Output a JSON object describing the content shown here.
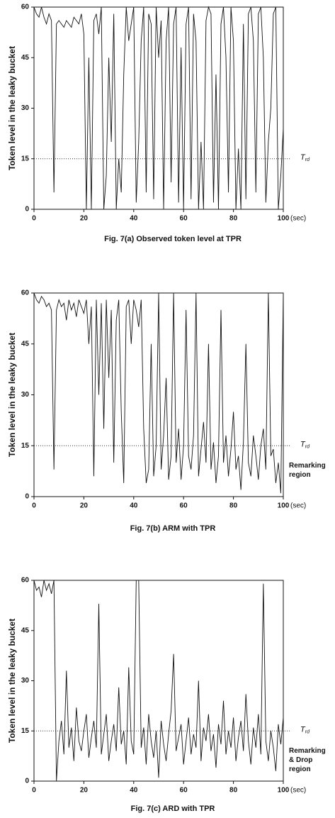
{
  "chart_data": [
    {
      "type": "line",
      "title": "Fig. 7(a) Observed token level at TPR",
      "ylabel": "Token level in the leaky bucket",
      "xlabel": "(sec)",
      "xlim": [
        0,
        100
      ],
      "ylim": [
        0,
        60
      ],
      "xticks": [
        0,
        20,
        40,
        60,
        80,
        100
      ],
      "yticks": [
        0,
        15,
        30,
        45,
        60
      ],
      "threshold": 15,
      "threshold_label": {
        "main": "T",
        "sub": "rd"
      },
      "color": "#111111",
      "x": [
        0,
        1,
        2,
        3,
        4,
        5,
        6,
        7,
        8,
        9,
        10,
        11,
        12,
        13,
        14,
        15,
        16,
        17,
        18,
        19,
        20,
        21,
        22,
        23,
        24,
        25,
        26,
        27,
        28,
        29,
        30,
        31,
        32,
        33,
        34,
        35,
        36,
        37,
        38,
        39,
        40,
        41,
        42,
        43,
        44,
        45,
        46,
        47,
        48,
        49,
        50,
        51,
        52,
        53,
        54,
        55,
        56,
        57,
        58,
        59,
        60,
        61,
        62,
        63,
        64,
        65,
        66,
        67,
        68,
        69,
        70,
        71,
        72,
        73,
        74,
        75,
        76,
        77,
        78,
        79,
        80,
        81,
        82,
        83,
        84,
        85,
        86,
        87,
        88,
        89,
        90,
        91,
        92,
        93,
        94,
        95,
        96,
        97,
        98,
        99,
        100
      ],
      "values": [
        60,
        58,
        57,
        60,
        57,
        55,
        58,
        56,
        5,
        55,
        56,
        55,
        54,
        56,
        55,
        54,
        57,
        56,
        55,
        58,
        52,
        0,
        45,
        0,
        56,
        58,
        52,
        60,
        0,
        10,
        45,
        20,
        58,
        0,
        15,
        5,
        40,
        60,
        50,
        55,
        60,
        2,
        20,
        50,
        60,
        5,
        58,
        55,
        3,
        60,
        45,
        56,
        0,
        50,
        60,
        8,
        55,
        60,
        2,
        48,
        0,
        55,
        60,
        3,
        58,
        50,
        0,
        20,
        0,
        56,
        60,
        58,
        2,
        40,
        0,
        55,
        60,
        45,
        5,
        60,
        50,
        0,
        18,
        0,
        55,
        3,
        58,
        60,
        50,
        5,
        58,
        60,
        45,
        2,
        20,
        30,
        58,
        60,
        0,
        10,
        24
      ]
    },
    {
      "type": "line",
      "title": "Fig. 7(b) ARM with TPR",
      "ylabel": "Token level in the leaky bucket",
      "xlabel": "(sec)",
      "xlim": [
        0,
        100
      ],
      "ylim": [
        0,
        60
      ],
      "xticks": [
        0,
        20,
        40,
        60,
        80,
        100
      ],
      "yticks": [
        0,
        15,
        30,
        45,
        60
      ],
      "threshold": 15,
      "threshold_label": {
        "main": "T",
        "sub": "rd"
      },
      "annotation": [
        "Remarking",
        "region"
      ],
      "color": "#111111",
      "x": [
        0,
        1,
        2,
        3,
        4,
        5,
        6,
        7,
        8,
        9,
        10,
        11,
        12,
        13,
        14,
        15,
        16,
        17,
        18,
        19,
        20,
        21,
        22,
        23,
        24,
        25,
        26,
        27,
        28,
        29,
        30,
        31,
        32,
        33,
        34,
        35,
        36,
        37,
        38,
        39,
        40,
        41,
        42,
        43,
        44,
        45,
        46,
        47,
        48,
        49,
        50,
        51,
        52,
        53,
        54,
        55,
        56,
        57,
        58,
        59,
        60,
        61,
        62,
        63,
        64,
        65,
        66,
        67,
        68,
        69,
        70,
        71,
        72,
        73,
        74,
        75,
        76,
        77,
        78,
        79,
        80,
        81,
        82,
        83,
        84,
        85,
        86,
        87,
        88,
        89,
        90,
        91,
        92,
        93,
        94,
        95,
        96,
        97,
        98,
        99,
        100
      ],
      "values": [
        60,
        58,
        57,
        59,
        58,
        56,
        57,
        55,
        8,
        55,
        58,
        56,
        57,
        52,
        58,
        55,
        57,
        53,
        58,
        56,
        54,
        58,
        45,
        56,
        6,
        58,
        30,
        57,
        20,
        58,
        35,
        55,
        10,
        52,
        58,
        25,
        4,
        56,
        58,
        45,
        58,
        55,
        50,
        58,
        20,
        4,
        8,
        45,
        6,
        15,
        60,
        8,
        18,
        35,
        5,
        12,
        60,
        10,
        20,
        5,
        15,
        55,
        12,
        8,
        18,
        60,
        6,
        14,
        22,
        10,
        45,
        8,
        16,
        4,
        12,
        55,
        10,
        18,
        6,
        14,
        25,
        8,
        12,
        2,
        16,
        45,
        10,
        6,
        18,
        12,
        5,
        15,
        20,
        8,
        60,
        12,
        14,
        4,
        10,
        1,
        60
      ]
    },
    {
      "type": "line",
      "title": "Fig. 7(c) ARD with TPR",
      "ylabel": "Token level in the leaky bucket",
      "xlabel": "(sec)",
      "xlim": [
        0,
        100
      ],
      "ylim": [
        0,
        60
      ],
      "xticks": [
        0,
        20,
        40,
        60,
        80,
        100
      ],
      "yticks": [
        0,
        15,
        30,
        45,
        60
      ],
      "threshold": 15,
      "threshold_label": {
        "main": "T",
        "sub": "rd"
      },
      "annotation": [
        "Remarking",
        "& Drop",
        "region"
      ],
      "color": "#111111",
      "x": [
        0,
        1,
        2,
        3,
        4,
        5,
        6,
        7,
        8,
        9,
        10,
        11,
        12,
        13,
        14,
        15,
        16,
        17,
        18,
        19,
        20,
        21,
        22,
        23,
        24,
        25,
        26,
        27,
        28,
        29,
        30,
        31,
        32,
        33,
        34,
        35,
        36,
        37,
        38,
        39,
        40,
        41,
        42,
        43,
        44,
        45,
        46,
        47,
        48,
        49,
        50,
        51,
        52,
        53,
        54,
        55,
        56,
        57,
        58,
        59,
        60,
        61,
        62,
        63,
        64,
        65,
        66,
        67,
        68,
        69,
        70,
        71,
        72,
        73,
        74,
        75,
        76,
        77,
        78,
        79,
        80,
        81,
        82,
        83,
        84,
        85,
        86,
        87,
        88,
        89,
        90,
        91,
        92,
        93,
        94,
        95,
        96,
        97,
        98,
        99,
        100
      ],
      "values": [
        60,
        57,
        58,
        55,
        60,
        57,
        59,
        56,
        60,
        0,
        12,
        18,
        8,
        33,
        10,
        16,
        6,
        22,
        12,
        9,
        15,
        20,
        7,
        13,
        18,
        10,
        53,
        8,
        14,
        20,
        6,
        12,
        17,
        9,
        28,
        11,
        15,
        5,
        34,
        12,
        8,
        60,
        60,
        10,
        16,
        5,
        20,
        12,
        7,
        15,
        1,
        18,
        11,
        6,
        14,
        21,
        38,
        9,
        13,
        17,
        5,
        12,
        19,
        8,
        14,
        10,
        30,
        6,
        16,
        12,
        20,
        9,
        14,
        4,
        17,
        11,
        24,
        8,
        15,
        10,
        19,
        6,
        13,
        18,
        9,
        26,
        12,
        5,
        16,
        10,
        20,
        8,
        59,
        12,
        6,
        15,
        10,
        3,
        17,
        11,
        19
      ]
    }
  ]
}
